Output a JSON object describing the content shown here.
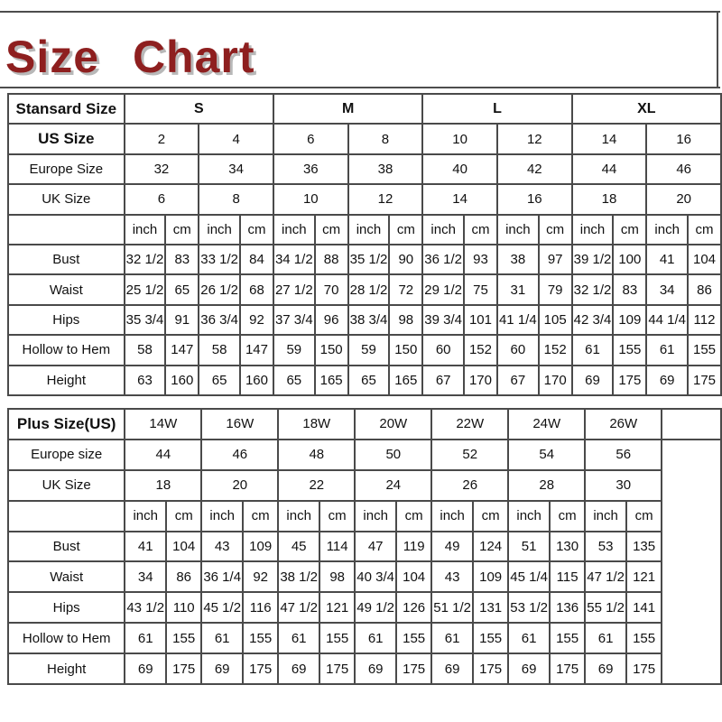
{
  "page": {
    "title": "Size Chart",
    "title_color": "#8e1f1f",
    "border_color": "#4a4a4a"
  },
  "standard_table": {
    "trailing_empty_column": false,
    "rows": [
      {
        "label": "Stansard Size",
        "label_bold": true,
        "bold": true,
        "colspan": 4,
        "cells": [
          "S",
          "M",
          "L",
          "XL"
        ]
      },
      {
        "label": "US Size",
        "label_bold": true,
        "bold": false,
        "colspan": 2,
        "cells": [
          "2",
          "4",
          "6",
          "8",
          "10",
          "12",
          "14",
          "16"
        ]
      },
      {
        "label": "Europe Size",
        "label_bold": false,
        "bold": false,
        "colspan": 2,
        "cells": [
          "32",
          "34",
          "36",
          "38",
          "40",
          "42",
          "44",
          "46"
        ]
      },
      {
        "label": "UK Size",
        "label_bold": false,
        "bold": false,
        "colspan": 2,
        "cells": [
          "6",
          "8",
          "10",
          "12",
          "14",
          "16",
          "18",
          "20"
        ]
      },
      {
        "label": "",
        "label_bold": false,
        "bold": false,
        "colspan": 1,
        "cells": [
          "inch",
          "cm",
          "inch",
          "cm",
          "inch",
          "cm",
          "inch",
          "cm",
          "inch",
          "cm",
          "inch",
          "cm",
          "inch",
          "cm",
          "inch",
          "cm"
        ]
      },
      {
        "label": "Bust",
        "label_bold": false,
        "bold": false,
        "colspan": 1,
        "cells": [
          "32 1/2",
          "83",
          "33 1/2",
          "84",
          "34 1/2",
          "88",
          "35 1/2",
          "90",
          "36 1/2",
          "93",
          "38",
          "97",
          "39 1/2",
          "100",
          "41",
          "104"
        ]
      },
      {
        "label": "Waist",
        "label_bold": false,
        "bold": false,
        "colspan": 1,
        "cells": [
          "25 1/2",
          "65",
          "26 1/2",
          "68",
          "27 1/2",
          "70",
          "28 1/2",
          "72",
          "29 1/2",
          "75",
          "31",
          "79",
          "32 1/2",
          "83",
          "34",
          "86"
        ]
      },
      {
        "label": "Hips",
        "label_bold": false,
        "bold": false,
        "colspan": 1,
        "cells": [
          "35 3/4",
          "91",
          "36 3/4",
          "92",
          "37 3/4",
          "96",
          "38 3/4",
          "98",
          "39 3/4",
          "101",
          "41 1/4",
          "105",
          "42 3/4",
          "109",
          "44 1/4",
          "112"
        ]
      },
      {
        "label": "Hollow to Hem",
        "label_bold": false,
        "bold": false,
        "colspan": 1,
        "cells": [
          "58",
          "147",
          "58",
          "147",
          "59",
          "150",
          "59",
          "150",
          "60",
          "152",
          "60",
          "152",
          "61",
          "155",
          "61",
          "155"
        ]
      },
      {
        "label": "Height",
        "label_bold": false,
        "bold": false,
        "colspan": 1,
        "cells": [
          "63",
          "160",
          "65",
          "160",
          "65",
          "165",
          "65",
          "165",
          "67",
          "170",
          "67",
          "170",
          "69",
          "175",
          "69",
          "175"
        ]
      }
    ]
  },
  "plus_table": {
    "trailing_empty_column": true,
    "rows": [
      {
        "label": "Plus Size(US)",
        "label_bold": true,
        "bold": false,
        "colspan": 2,
        "cells": [
          "14W",
          "16W",
          "18W",
          "20W",
          "22W",
          "24W",
          "26W"
        ]
      },
      {
        "label": "Europe size",
        "label_bold": false,
        "bold": false,
        "colspan": 2,
        "cells": [
          "44",
          "46",
          "48",
          "50",
          "52",
          "54",
          "56"
        ]
      },
      {
        "label": "UK Size",
        "label_bold": false,
        "bold": false,
        "colspan": 2,
        "cells": [
          "18",
          "20",
          "22",
          "24",
          "26",
          "28",
          "30"
        ]
      },
      {
        "label": "",
        "label_bold": false,
        "bold": false,
        "colspan": 1,
        "cells": [
          "inch",
          "cm",
          "inch",
          "cm",
          "inch",
          "cm",
          "inch",
          "cm",
          "inch",
          "cm",
          "inch",
          "cm",
          "inch",
          "cm"
        ]
      },
      {
        "label": "Bust",
        "label_bold": false,
        "bold": false,
        "colspan": 1,
        "cells": [
          "41",
          "104",
          "43",
          "109",
          "45",
          "114",
          "47",
          "119",
          "49",
          "124",
          "51",
          "130",
          "53",
          "135"
        ]
      },
      {
        "label": "Waist",
        "label_bold": false,
        "bold": false,
        "colspan": 1,
        "cells": [
          "34",
          "86",
          "36 1/4",
          "92",
          "38 1/2",
          "98",
          "40 3/4",
          "104",
          "43",
          "109",
          "45 1/4",
          "115",
          "47 1/2",
          "121"
        ]
      },
      {
        "label": "Hips",
        "label_bold": false,
        "bold": false,
        "colspan": 1,
        "cells": [
          "43 1/2",
          "110",
          "45 1/2",
          "116",
          "47 1/2",
          "121",
          "49 1/2",
          "126",
          "51 1/2",
          "131",
          "53 1/2",
          "136",
          "55 1/2",
          "141"
        ]
      },
      {
        "label": "Hollow to Hem",
        "label_bold": false,
        "bold": false,
        "colspan": 1,
        "cells": [
          "61",
          "155",
          "61",
          "155",
          "61",
          "155",
          "61",
          "155",
          "61",
          "155",
          "61",
          "155",
          "61",
          "155"
        ]
      },
      {
        "label": "Height",
        "label_bold": false,
        "bold": false,
        "colspan": 1,
        "cells": [
          "69",
          "175",
          "69",
          "175",
          "69",
          "175",
          "69",
          "175",
          "69",
          "175",
          "69",
          "175",
          "69",
          "175"
        ]
      }
    ]
  }
}
